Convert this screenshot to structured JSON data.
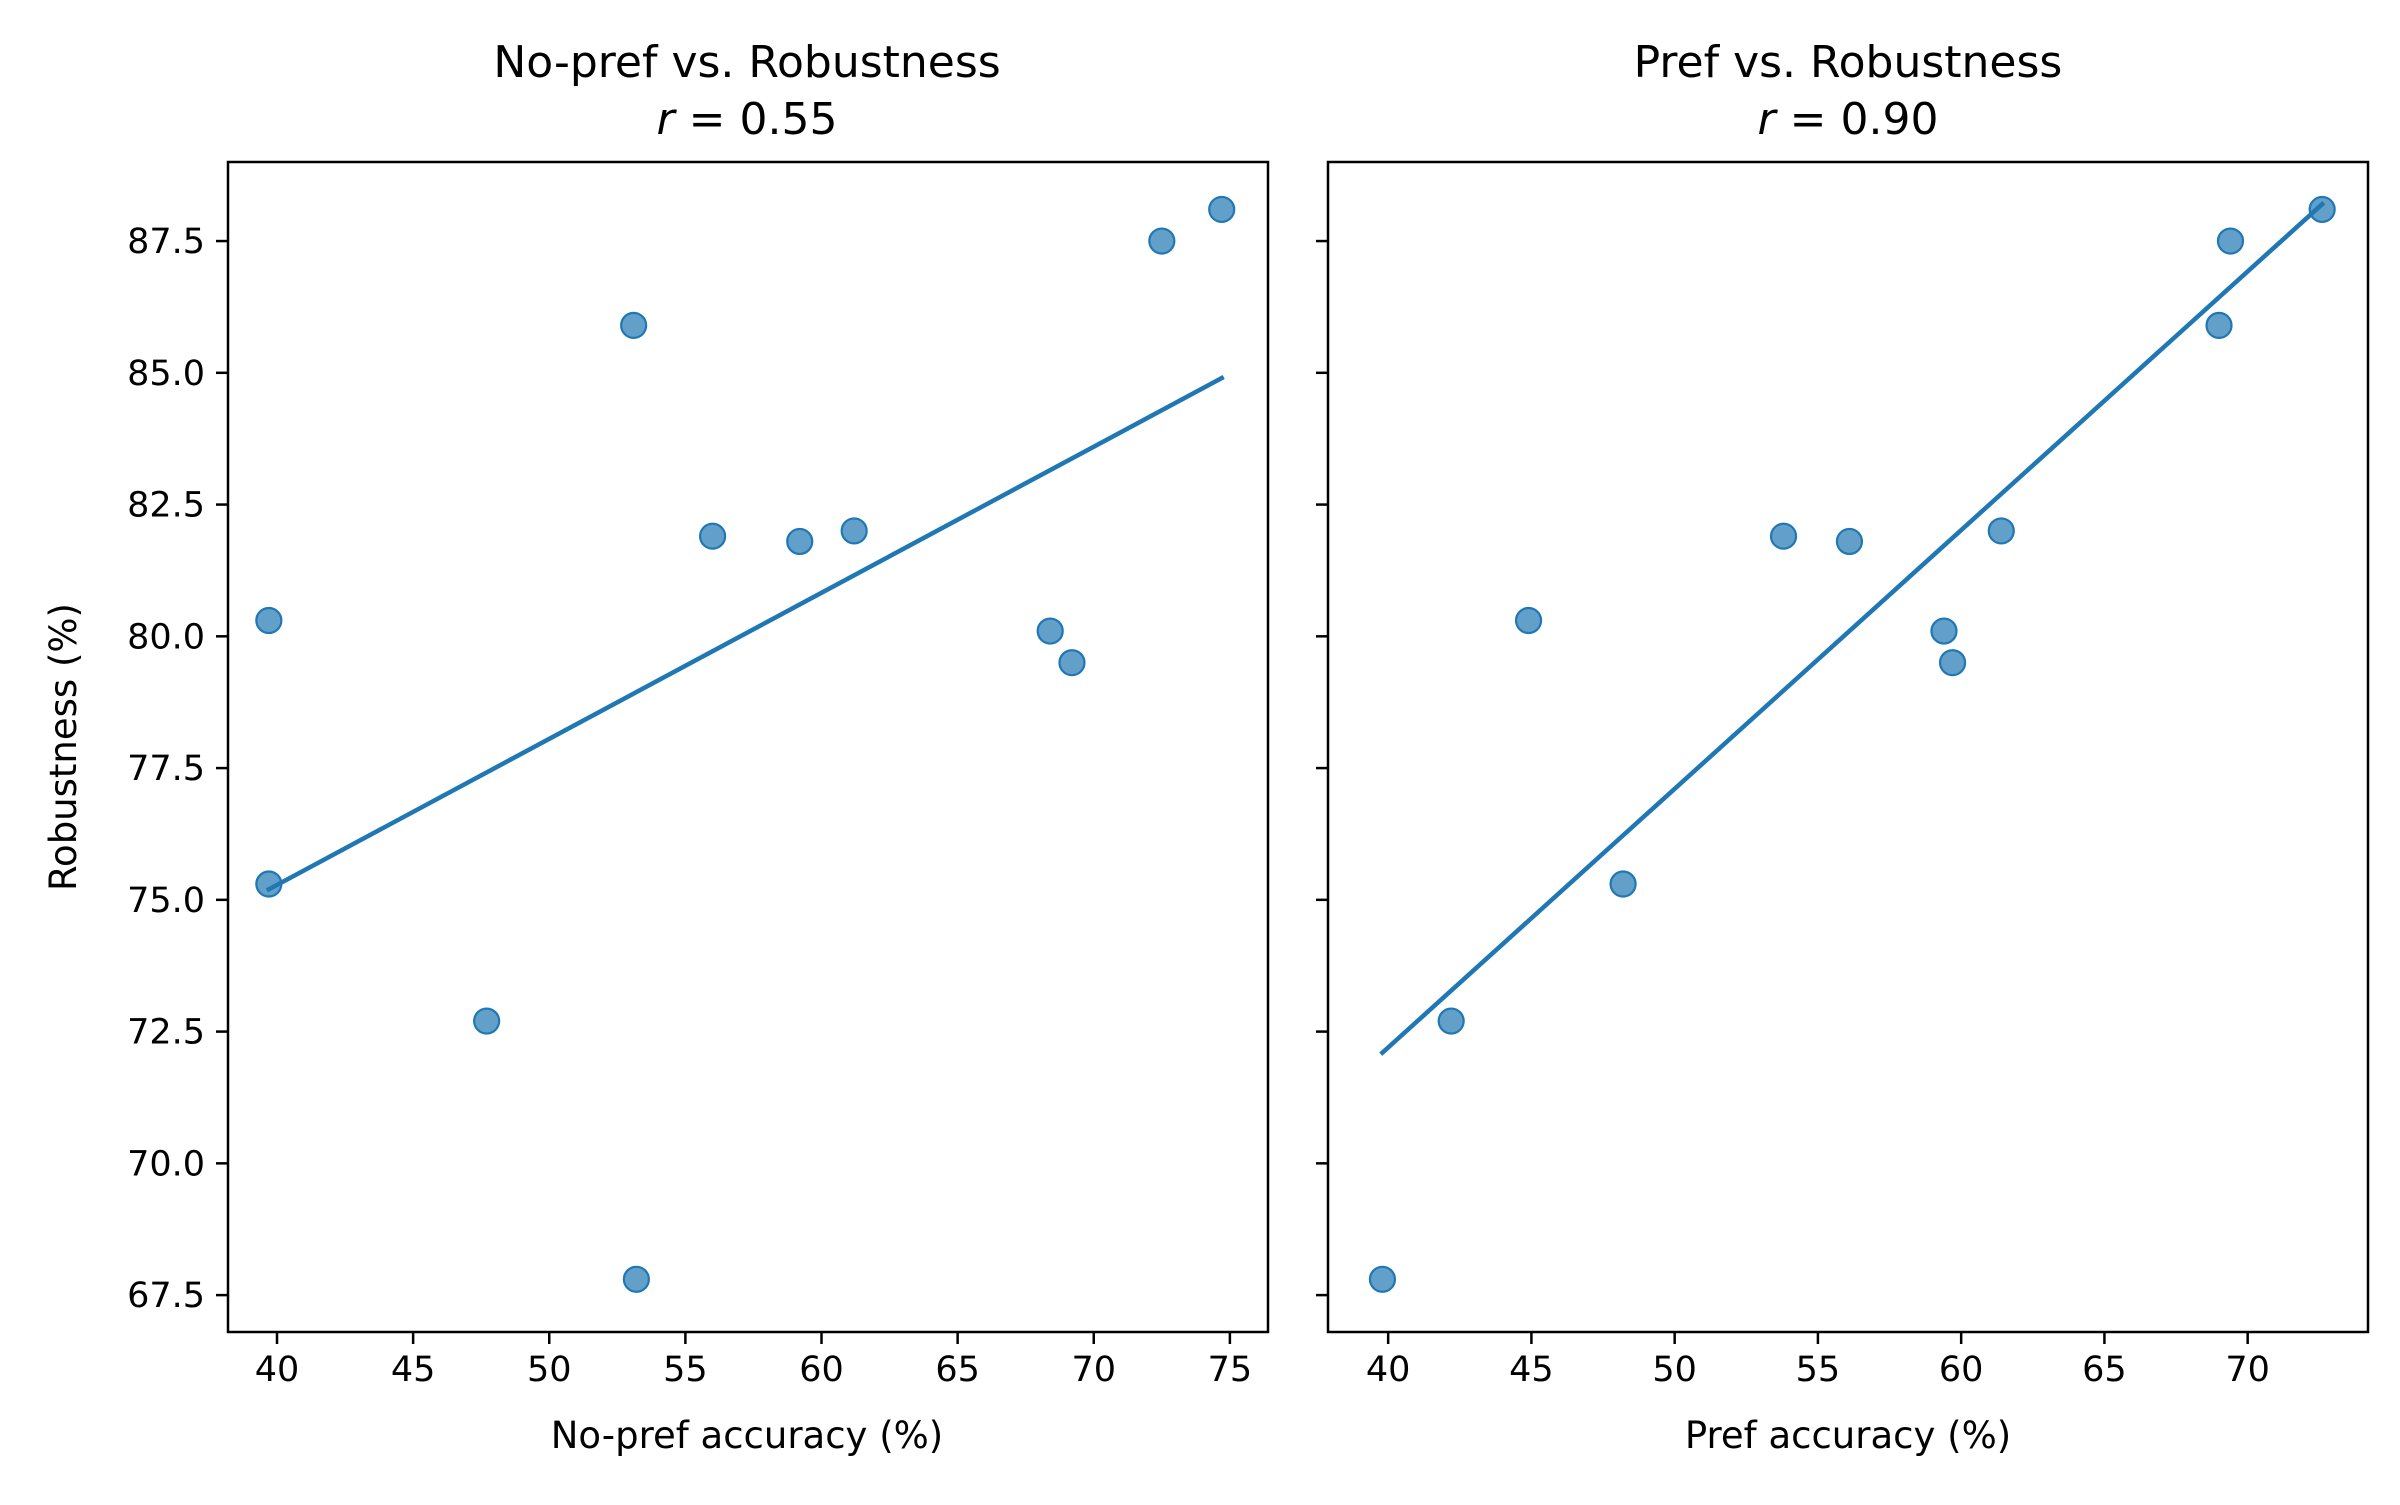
{
  "colors": {
    "point": "#1f77b4",
    "fit_line": "#1f77b4",
    "axes": "#000000",
    "background": "#ffffff"
  },
  "chart_data": [
    {
      "type": "scatter",
      "title": "No-pref vs. Robustness",
      "subtitle_var": "r",
      "subtitle_rest": " = 0.55",
      "xlabel": "No-pref accuracy (%)",
      "ylabel": "Robustness (%)",
      "xlim": [
        38.2,
        76.4
      ],
      "ylim": [
        66.8,
        89.0
      ],
      "xticks": [
        40,
        45,
        50,
        55,
        60,
        65,
        70,
        75
      ],
      "xtick_labels": [
        "40",
        "45",
        "50",
        "55",
        "60",
        "65",
        "70",
        "75"
      ],
      "yticks": [
        67.5,
        70.0,
        72.5,
        75.0,
        77.5,
        80.0,
        82.5,
        85.0,
        87.5
      ],
      "ytick_labels": [
        "67.5",
        "70.0",
        "72.5",
        "75.0",
        "77.5",
        "80.0",
        "82.5",
        "85.0",
        "87.5"
      ],
      "show_ytick_labels": true,
      "grid": false,
      "points": [
        {
          "x": 39.7,
          "y": 80.3
        },
        {
          "x": 39.7,
          "y": 75.3
        },
        {
          "x": 47.7,
          "y": 72.7
        },
        {
          "x": 53.1,
          "y": 85.9
        },
        {
          "x": 53.2,
          "y": 67.8
        },
        {
          "x": 56.0,
          "y": 81.9
        },
        {
          "x": 59.2,
          "y": 81.8
        },
        {
          "x": 61.2,
          "y": 82.0
        },
        {
          "x": 68.4,
          "y": 80.1
        },
        {
          "x": 69.2,
          "y": 79.5
        },
        {
          "x": 72.5,
          "y": 87.5
        },
        {
          "x": 74.7,
          "y": 88.1
        }
      ],
      "fit_line": [
        {
          "x": 39.7,
          "y": 75.2
        },
        {
          "x": 74.7,
          "y": 84.9
        }
      ]
    },
    {
      "type": "scatter",
      "title": "Pref vs. Robustness",
      "subtitle_var": "r",
      "subtitle_rest": " = 0.90",
      "xlabel": "Pref accuracy (%)",
      "ylabel": "",
      "xlim": [
        37.9,
        74.2
      ],
      "ylim": [
        66.8,
        89.0
      ],
      "xticks": [
        40,
        45,
        50,
        55,
        60,
        65,
        70
      ],
      "xtick_labels": [
        "40",
        "45",
        "50",
        "55",
        "60",
        "65",
        "70"
      ],
      "yticks": [
        67.5,
        70.0,
        72.5,
        75.0,
        77.5,
        80.0,
        82.5,
        85.0,
        87.5
      ],
      "ytick_labels": [],
      "show_ytick_labels": false,
      "grid": false,
      "points": [
        {
          "x": 39.8,
          "y": 67.8
        },
        {
          "x": 42.2,
          "y": 72.7
        },
        {
          "x": 44.9,
          "y": 80.3
        },
        {
          "x": 48.2,
          "y": 75.3
        },
        {
          "x": 53.8,
          "y": 81.9
        },
        {
          "x": 56.1,
          "y": 81.8
        },
        {
          "x": 59.4,
          "y": 80.1
        },
        {
          "x": 59.7,
          "y": 79.5
        },
        {
          "x": 61.4,
          "y": 82.0
        },
        {
          "x": 69.0,
          "y": 85.9
        },
        {
          "x": 69.4,
          "y": 87.5
        },
        {
          "x": 72.6,
          "y": 88.1
        }
      ],
      "fit_line": [
        {
          "x": 39.8,
          "y": 72.1
        },
        {
          "x": 72.6,
          "y": 88.2
        }
      ]
    }
  ]
}
